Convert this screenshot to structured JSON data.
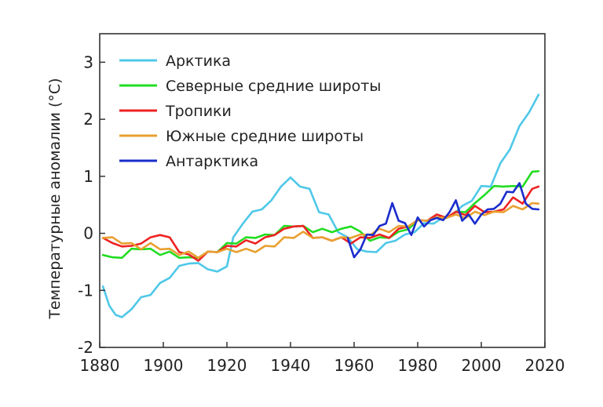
{
  "chart_data": {
    "type": "line",
    "title": "",
    "xlabel": "",
    "ylabel": "Температурные аномалии (°C)",
    "xlim": [
      1880,
      2020
    ],
    "ylim": [
      -2,
      3.5
    ],
    "xticks": [
      1880,
      1900,
      1920,
      1940,
      1960,
      1980,
      2000,
      2020
    ],
    "yticks": [
      -2,
      -1,
      0,
      1,
      2,
      3
    ],
    "grid": false,
    "legend_position": "top-left",
    "series": [
      {
        "name": "Арктика",
        "color": "#4fc8e8",
        "x": [
          1881,
          1883,
          1885,
          1887,
          1890,
          1893,
          1896,
          1899,
          1902,
          1905,
          1908,
          1911,
          1914,
          1917,
          1920,
          1922,
          1925,
          1928,
          1931,
          1934,
          1937,
          1940,
          1943,
          1946,
          1949,
          1952,
          1955,
          1958,
          1961,
          1964,
          1967,
          1970,
          1973,
          1976,
          1979,
          1982,
          1985,
          1988,
          1991,
          1994,
          1997,
          2000,
          2003,
          2006,
          2009,
          2012,
          2015,
          2018
        ],
        "y": [
          -0.9,
          -1.3,
          -1.4,
          -1.5,
          -1.3,
          -1.15,
          -1.05,
          -0.9,
          -0.75,
          -0.6,
          -0.5,
          -0.55,
          -0.6,
          -0.7,
          -0.55,
          -0.1,
          0.2,
          0.35,
          0.45,
          0.55,
          0.85,
          0.95,
          0.85,
          0.75,
          0.4,
          0.3,
          0.05,
          -0.1,
          -0.25,
          -0.35,
          -0.3,
          -0.2,
          -0.1,
          -0.05,
          0.05,
          0.15,
          0.2,
          0.25,
          0.35,
          0.45,
          0.6,
          0.8,
          0.85,
          1.2,
          1.5,
          1.85,
          2.15,
          2.4
        ]
      },
      {
        "name": "Северные средние широты",
        "color": "#22dd22",
        "x": [
          1881,
          1884,
          1887,
          1890,
          1893,
          1896,
          1899,
          1902,
          1905,
          1908,
          1911,
          1914,
          1917,
          1920,
          1923,
          1926,
          1929,
          1932,
          1935,
          1938,
          1941,
          1944,
          1947,
          1950,
          1953,
          1956,
          1959,
          1962,
          1965,
          1968,
          1971,
          1974,
          1977,
          1980,
          1983,
          1986,
          1989,
          1992,
          1995,
          1998,
          2001,
          2004,
          2007,
          2010,
          2013,
          2016,
          2018
        ],
        "y": [
          -0.35,
          -0.45,
          -0.4,
          -0.3,
          -0.25,
          -0.3,
          -0.35,
          -0.35,
          -0.4,
          -0.45,
          -0.4,
          -0.35,
          -0.3,
          -0.2,
          -0.15,
          -0.1,
          -0.05,
          -0.05,
          0.0,
          0.1,
          0.15,
          0.1,
          0.05,
          0.05,
          0.05,
          0.05,
          0.15,
          0.0,
          -0.1,
          -0.1,
          -0.05,
          0.0,
          0.1,
          0.2,
          0.25,
          0.3,
          0.3,
          0.35,
          0.4,
          0.5,
          0.7,
          0.8,
          0.85,
          0.8,
          0.85,
          1.05,
          1.12
        ]
      },
      {
        "name": "Тропики",
        "color": "#ee2222",
        "x": [
          1881,
          1884,
          1887,
          1890,
          1893,
          1896,
          1899,
          1902,
          1905,
          1908,
          1911,
          1914,
          1917,
          1920,
          1923,
          1926,
          1929,
          1932,
          1935,
          1938,
          1941,
          1944,
          1947,
          1950,
          1953,
          1956,
          1959,
          1962,
          1965,
          1968,
          1971,
          1974,
          1977,
          1980,
          1983,
          1986,
          1989,
          1992,
          1995,
          1998,
          2001,
          2004,
          2007,
          2010,
          2013,
          2016,
          2018
        ],
        "y": [
          -0.05,
          -0.2,
          -0.2,
          -0.25,
          -0.15,
          -0.1,
          0.0,
          -0.1,
          -0.3,
          -0.4,
          -0.45,
          -0.35,
          -0.3,
          -0.25,
          -0.2,
          -0.15,
          -0.15,
          -0.1,
          0.0,
          0.05,
          0.15,
          0.1,
          -0.05,
          -0.1,
          -0.1,
          -0.1,
          -0.15,
          -0.1,
          -0.05,
          -0.05,
          -0.05,
          0.05,
          0.15,
          0.2,
          0.25,
          0.3,
          0.3,
          0.35,
          0.35,
          0.45,
          0.4,
          0.35,
          0.45,
          0.6,
          0.55,
          0.75,
          0.85
        ]
      },
      {
        "name": "Южные средние широты",
        "color": "#e8a030",
        "x": [
          1881,
          1884,
          1887,
          1890,
          1893,
          1896,
          1899,
          1902,
          1905,
          1908,
          1911,
          1914,
          1917,
          1920,
          1923,
          1926,
          1929,
          1932,
          1935,
          1938,
          1941,
          1944,
          1947,
          1950,
          1953,
          1956,
          1959,
          1962,
          1965,
          1968,
          1971,
          1974,
          1977,
          1980,
          1983,
          1986,
          1989,
          1992,
          1995,
          1998,
          2001,
          2004,
          2007,
          2010,
          2013,
          2016,
          2018
        ],
        "y": [
          -0.05,
          -0.1,
          -0.15,
          -0.2,
          -0.25,
          -0.2,
          -0.25,
          -0.3,
          -0.35,
          -0.35,
          -0.4,
          -0.35,
          -0.3,
          -0.3,
          -0.3,
          -0.3,
          -0.3,
          -0.25,
          -0.2,
          -0.1,
          -0.05,
          0.0,
          -0.05,
          -0.1,
          -0.1,
          -0.1,
          -0.05,
          -0.05,
          0.0,
          0.05,
          0.05,
          0.1,
          0.15,
          0.2,
          0.25,
          0.25,
          0.3,
          0.3,
          0.3,
          0.35,
          0.35,
          0.35,
          0.4,
          0.45,
          0.45,
          0.5,
          0.55
        ]
      },
      {
        "name": "Антарктика",
        "color": "#1a2ccc",
        "x": [
          1958,
          1960,
          1962,
          1964,
          1966,
          1968,
          1970,
          1972,
          1974,
          1976,
          1978,
          1980,
          1982,
          1984,
          1986,
          1988,
          1990,
          1992,
          1994,
          1996,
          1998,
          2000,
          2002,
          2004,
          2006,
          2008,
          2010,
          2012,
          2014,
          2016,
          2018
        ],
        "y": [
          -0.05,
          -0.45,
          -0.25,
          -0.05,
          0.0,
          0.1,
          0.2,
          0.5,
          0.25,
          0.15,
          0.0,
          0.25,
          0.15,
          0.2,
          0.3,
          0.2,
          0.4,
          0.55,
          0.25,
          0.3,
          0.2,
          0.3,
          0.45,
          0.4,
          0.55,
          0.7,
          0.75,
          0.85,
          0.55,
          0.4,
          0.45
        ]
      }
    ]
  }
}
